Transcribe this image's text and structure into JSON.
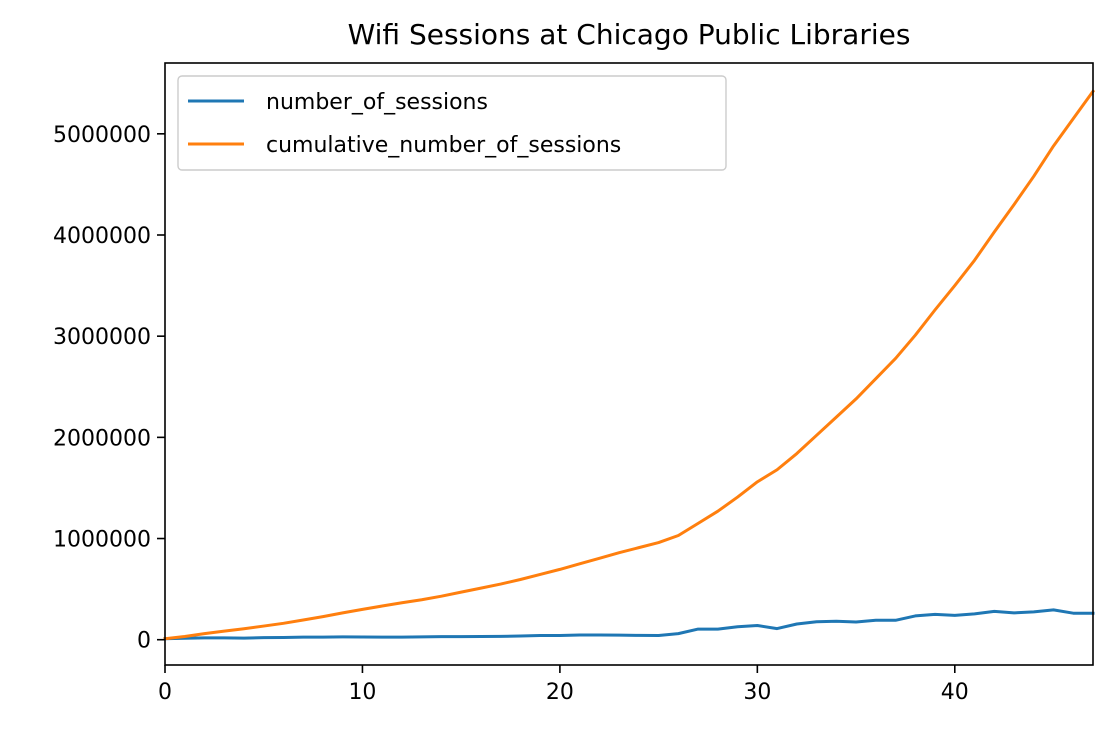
{
  "chart_data": {
    "type": "line",
    "title": "Wifi Sessions at Chicago Public Libraries",
    "xlabel": "",
    "ylabel": "",
    "xlim": [
      0,
      47
    ],
    "ylim": [
      -250000,
      5700000
    ],
    "xticks": [
      0,
      10,
      20,
      30,
      40
    ],
    "yticks": [
      0,
      1000000,
      2000000,
      3000000,
      4000000,
      5000000
    ],
    "xtick_labels": [
      "0",
      "10",
      "20",
      "30",
      "40"
    ],
    "ytick_labels": [
      "0",
      "1000000",
      "2000000",
      "3000000",
      "4000000",
      "5000000"
    ],
    "grid": false,
    "legend_position": "upper-left",
    "x": [
      0,
      1,
      2,
      3,
      4,
      5,
      6,
      7,
      8,
      9,
      10,
      11,
      12,
      13,
      14,
      15,
      16,
      17,
      18,
      19,
      20,
      21,
      22,
      23,
      24,
      25,
      26,
      27,
      28,
      29,
      30,
      31,
      32,
      33,
      34,
      35,
      36,
      37,
      38,
      39,
      40,
      41,
      42,
      43,
      44,
      45,
      46,
      47
    ],
    "series": [
      {
        "name": "number_of_sessions",
        "color": "#1f77b4",
        "values": [
          10000,
          14000,
          18000,
          18000,
          16000,
          20000,
          22000,
          26000,
          26000,
          28000,
          27000,
          25000,
          26000,
          28000,
          30000,
          31000,
          32000,
          33000,
          37000,
          41000,
          42000,
          46000,
          47000,
          45000,
          43000,
          42000,
          60000,
          105000,
          105000,
          128000,
          140000,
          110000,
          155000,
          178000,
          183000,
          175000,
          192000,
          192000,
          235000,
          250000,
          240000,
          255000,
          280000,
          265000,
          275000,
          295000,
          262000,
          262000
        ]
      },
      {
        "name": "cumulative_number_of_sessions",
        "color": "#ff7f0e",
        "values": [
          10000,
          32000,
          60000,
          85000,
          108000,
          135000,
          162000,
          195000,
          228000,
          265000,
          300000,
          333000,
          365000,
          395000,
          430000,
          470000,
          510000,
          550000,
          595000,
          645000,
          695000,
          750000,
          805000,
          860000,
          910000,
          960000,
          1030000,
          1150000,
          1270000,
          1410000,
          1560000,
          1680000,
          1840000,
          2020000,
          2200000,
          2380000,
          2580000,
          2780000,
          3010000,
          3260000,
          3500000,
          3750000,
          4030000,
          4300000,
          4580000,
          4880000,
          5150000,
          5420000
        ]
      }
    ]
  }
}
